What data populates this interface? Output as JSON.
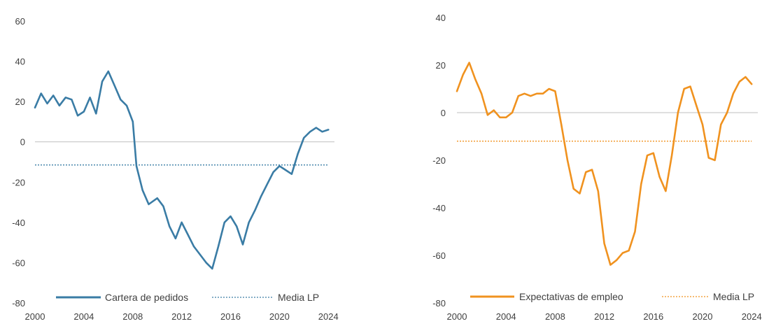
{
  "chart_data": [
    {
      "type": "line",
      "x_ticks": [
        "2000",
        "2004",
        "2008",
        "2012",
        "2016",
        "2020",
        "2024"
      ],
      "y_ticks": [
        "-80",
        "-60",
        "-40",
        "-20",
        "0",
        "20",
        "40",
        "60"
      ],
      "ylim": [
        -80,
        60
      ],
      "xlim": [
        2000,
        2024.5
      ],
      "legend_position": "bottom",
      "series": [
        {
          "name": "Cartera de pedidos",
          "color": "#3a7ca5",
          "style": "solid",
          "points": [
            [
              2000,
              17
            ],
            [
              2000.5,
              24
            ],
            [
              2001,
              19
            ],
            [
              2001.5,
              23
            ],
            [
              2002,
              18
            ],
            [
              2002.5,
              22
            ],
            [
              2003,
              21
            ],
            [
              2003.5,
              13
            ],
            [
              2004,
              15
            ],
            [
              2004.5,
              22
            ],
            [
              2005,
              14
            ],
            [
              2005.5,
              30
            ],
            [
              2006,
              35
            ],
            [
              2006.5,
              28
            ],
            [
              2007,
              21
            ],
            [
              2007.5,
              18
            ],
            [
              2008,
              10
            ],
            [
              2008.3,
              -12
            ],
            [
              2008.8,
              -24
            ],
            [
              2009.3,
              -31
            ],
            [
              2010,
              -28
            ],
            [
              2010.5,
              -32
            ],
            [
              2011,
              -42
            ],
            [
              2011.5,
              -48
            ],
            [
              2012,
              -40
            ],
            [
              2012.5,
              -46
            ],
            [
              2013,
              -52
            ],
            [
              2014,
              -60
            ],
            [
              2014.5,
              -63
            ],
            [
              2015,
              -52
            ],
            [
              2015.5,
              -40
            ],
            [
              2016,
              -37
            ],
            [
              2016.5,
              -42
            ],
            [
              2017,
              -51
            ],
            [
              2017.5,
              -40
            ],
            [
              2018,
              -34
            ],
            [
              2018.5,
              -27
            ],
            [
              2019,
              -21
            ],
            [
              2019.5,
              -15
            ],
            [
              2020,
              -12
            ],
            [
              2020.5,
              -14
            ],
            [
              2021,
              -16
            ],
            [
              2021.5,
              -6
            ],
            [
              2022,
              2
            ],
            [
              2022.5,
              5
            ],
            [
              2023,
              7
            ],
            [
              2023.5,
              5
            ],
            [
              2024,
              6
            ]
          ]
        },
        {
          "name": "Media LP",
          "color": "#3a7ca5",
          "style": "dotted",
          "points": [
            [
              2000,
              -11.5
            ],
            [
              2024,
              -11.5
            ]
          ]
        }
      ]
    },
    {
      "type": "line",
      "x_ticks": [
        "2000",
        "2004",
        "2008",
        "2012",
        "2016",
        "2020",
        "2024"
      ],
      "y_ticks": [
        "-80",
        "-60",
        "-40",
        "-20",
        "0",
        "20",
        "40"
      ],
      "ylim": [
        -80,
        40
      ],
      "xlim": [
        2000,
        2024.5
      ],
      "legend_position": "bottom",
      "series": [
        {
          "name": "Expectativas de empleo",
          "color": "#f0921f",
          "style": "solid",
          "points": [
            [
              2000,
              9
            ],
            [
              2000.5,
              16
            ],
            [
              2001,
              21
            ],
            [
              2001.5,
              14
            ],
            [
              2002,
              8
            ],
            [
              2002.5,
              -1
            ],
            [
              2003,
              1
            ],
            [
              2003.5,
              -2
            ],
            [
              2004,
              -2
            ],
            [
              2004.5,
              0
            ],
            [
              2005,
              7
            ],
            [
              2005.5,
              8
            ],
            [
              2006,
              7
            ],
            [
              2006.5,
              8
            ],
            [
              2007,
              8
            ],
            [
              2007.5,
              10
            ],
            [
              2008,
              9
            ],
            [
              2008.5,
              -5
            ],
            [
              2009,
              -20
            ],
            [
              2009.5,
              -32
            ],
            [
              2010,
              -34
            ],
            [
              2010.5,
              -25
            ],
            [
              2011,
              -24
            ],
            [
              2011.5,
              -33
            ],
            [
              2012,
              -55
            ],
            [
              2012.5,
              -64
            ],
            [
              2013,
              -62
            ],
            [
              2013.5,
              -59
            ],
            [
              2014,
              -58
            ],
            [
              2014.5,
              -50
            ],
            [
              2015,
              -30
            ],
            [
              2015.5,
              -18
            ],
            [
              2016,
              -17
            ],
            [
              2016.5,
              -27
            ],
            [
              2017,
              -33
            ],
            [
              2017.5,
              -18
            ],
            [
              2018,
              0
            ],
            [
              2018.5,
              10
            ],
            [
              2019,
              11
            ],
            [
              2019.5,
              3
            ],
            [
              2020,
              -5
            ],
            [
              2020.5,
              -19
            ],
            [
              2021,
              -20
            ],
            [
              2021.5,
              -5
            ],
            [
              2022,
              0
            ],
            [
              2022.5,
              8
            ],
            [
              2023,
              13
            ],
            [
              2023.5,
              15
            ],
            [
              2024,
              12
            ]
          ]
        },
        {
          "name": "Media LP",
          "color": "#f0921f",
          "style": "dotted",
          "points": [
            [
              2000,
              -12
            ],
            [
              2024,
              -12
            ]
          ]
        }
      ]
    }
  ]
}
